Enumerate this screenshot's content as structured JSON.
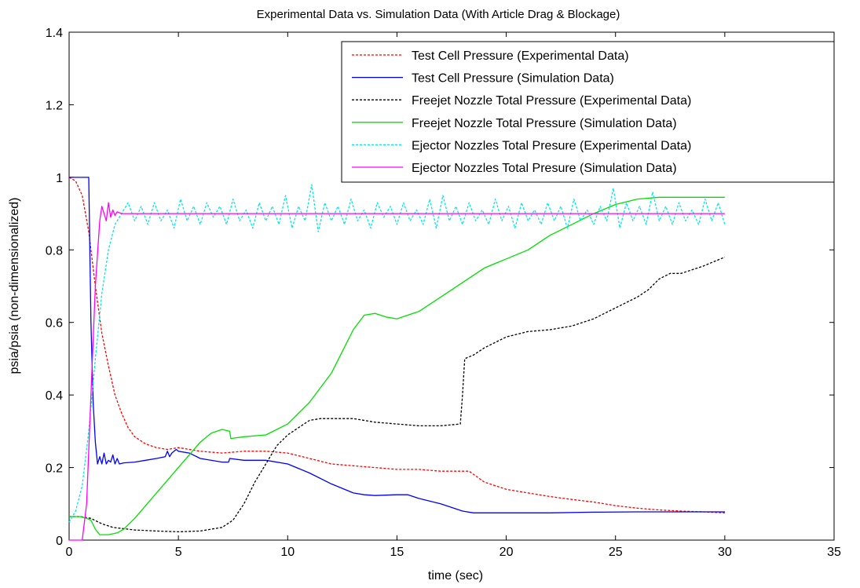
{
  "chart_data": {
    "type": "line",
    "title": "Experimental Data vs. Simulation Data (With Article Drag & Blockage)",
    "xlabel": "time (sec)",
    "ylabel": "psia/psia (non-dimensionalized)",
    "xlim": [
      0,
      35
    ],
    "ylim": [
      0,
      1.4
    ],
    "xticks": [
      0,
      5,
      10,
      15,
      20,
      25,
      30,
      35
    ],
    "xtick_labels": [
      "0",
      "5",
      "10",
      "15",
      "20",
      "25",
      "30",
      "35"
    ],
    "yticks": [
      0,
      0.2,
      0.4,
      0.6,
      0.8,
      1,
      1.2,
      1.4
    ],
    "ytick_labels": [
      "0",
      "0.2",
      "0.4",
      "0.6",
      "0.8",
      "1",
      "1.2",
      "1.4"
    ],
    "grid": false,
    "legend_position": "top-right",
    "series": [
      {
        "name": "Test Cell Pressure (Experimental Data)",
        "color": "#ff0000",
        "style": "dashed",
        "x": [
          0,
          0.3,
          0.6,
          0.9,
          1.2,
          1.5,
          1.8,
          2.1,
          2.4,
          2.7,
          3.0,
          3.5,
          4.0,
          4.5,
          5.0,
          6.0,
          7.0,
          8.0,
          9.0,
          10.0,
          11.0,
          12.0,
          13.0,
          14.0,
          15.0,
          16.0,
          17.0,
          18.0,
          18.3,
          19.0,
          20.0,
          21.0,
          22.0,
          23.0,
          24.0,
          25.0,
          26.0,
          27.0,
          28.0,
          29.0,
          30.0
        ],
        "y": [
          1.0,
          0.99,
          0.95,
          0.85,
          0.7,
          0.57,
          0.48,
          0.4,
          0.35,
          0.31,
          0.285,
          0.265,
          0.255,
          0.25,
          0.255,
          0.245,
          0.24,
          0.245,
          0.245,
          0.24,
          0.225,
          0.21,
          0.205,
          0.2,
          0.195,
          0.195,
          0.19,
          0.19,
          0.19,
          0.16,
          0.14,
          0.13,
          0.12,
          0.112,
          0.105,
          0.095,
          0.088,
          0.083,
          0.08,
          0.078,
          0.075
        ]
      },
      {
        "name": "Test Cell Pressure (Simulation Data)",
        "color": "#0000ff",
        "style": "solid",
        "x": [
          0,
          0.9,
          1.0,
          1.1,
          1.2,
          1.3,
          1.4,
          1.5,
          1.6,
          1.7,
          1.8,
          1.9,
          2.0,
          2.1,
          2.2,
          2.3,
          2.5,
          3.0,
          3.5,
          4.0,
          4.4,
          4.5,
          4.6,
          4.7,
          4.8,
          4.9,
          5.0,
          5.5,
          6.0,
          7.0,
          7.3,
          7.35,
          8.0,
          9.0,
          10.0,
          11.0,
          12.0,
          13.0,
          13.5,
          14.0,
          15.0,
          15.5,
          16.0,
          17.0,
          18.0,
          18.5,
          20.0,
          22.0,
          24.0,
          26.0,
          28.0,
          30.0
        ],
        "y": [
          1.0,
          1.0,
          0.6,
          0.38,
          0.27,
          0.21,
          0.23,
          0.21,
          0.24,
          0.21,
          0.22,
          0.215,
          0.235,
          0.21,
          0.225,
          0.21,
          0.213,
          0.215,
          0.22,
          0.225,
          0.23,
          0.245,
          0.23,
          0.24,
          0.245,
          0.25,
          0.245,
          0.24,
          0.225,
          0.215,
          0.215,
          0.225,
          0.22,
          0.22,
          0.21,
          0.185,
          0.155,
          0.13,
          0.125,
          0.123,
          0.125,
          0.125,
          0.115,
          0.1,
          0.08,
          0.075,
          0.075,
          0.075,
          0.077,
          0.078,
          0.078,
          0.078
        ]
      },
      {
        "name": "Freejet Nozzle Total Pressure (Experimental Data)",
        "color": "#000000",
        "style": "dashed",
        "x": [
          0,
          0.5,
          1.0,
          1.5,
          2.0,
          3.0,
          4.0,
          5.0,
          6.0,
          7.0,
          7.5,
          8.0,
          8.5,
          9.0,
          9.5,
          10.0,
          10.5,
          11.0,
          11.5,
          12.0,
          13.0,
          14.0,
          15.0,
          16.0,
          17.0,
          17.9,
          18.0,
          18.1,
          18.5,
          19.0,
          20.0,
          21.0,
          22.0,
          23.0,
          24.0,
          25.0,
          26.0,
          26.5,
          27.0,
          27.5,
          28.0,
          29.0,
          30.0
        ],
        "y": [
          0.065,
          0.065,
          0.06,
          0.045,
          0.035,
          0.028,
          0.025,
          0.023,
          0.025,
          0.035,
          0.055,
          0.1,
          0.16,
          0.21,
          0.26,
          0.29,
          0.31,
          0.33,
          0.335,
          0.335,
          0.335,
          0.325,
          0.32,
          0.315,
          0.315,
          0.32,
          0.4,
          0.5,
          0.51,
          0.53,
          0.56,
          0.575,
          0.58,
          0.59,
          0.61,
          0.64,
          0.67,
          0.69,
          0.72,
          0.735,
          0.735,
          0.755,
          0.78
        ]
      },
      {
        "name": "Freejet Nozzle Total Pressure (Simulation Data)",
        "color": "#00e000",
        "style": "solid",
        "x": [
          0,
          0.5,
          0.8,
          1.0,
          1.2,
          1.4,
          1.8,
          2.2,
          2.5,
          3.0,
          4.0,
          5.0,
          6.0,
          6.5,
          7.0,
          7.35,
          7.4,
          8.0,
          9.0,
          10.0,
          11.0,
          12.0,
          12.5,
          13.0,
          13.5,
          14.0,
          14.5,
          15.0,
          16.0,
          17.0,
          18.0,
          19.0,
          20.0,
          21.0,
          22.0,
          23.0,
          24.0,
          25.0,
          26.0,
          27.0,
          28.0,
          29.0,
          30.0
        ],
        "y": [
          0.065,
          0.065,
          0.06,
          0.055,
          0.03,
          0.015,
          0.015,
          0.02,
          0.03,
          0.06,
          0.13,
          0.2,
          0.27,
          0.295,
          0.305,
          0.3,
          0.28,
          0.285,
          0.29,
          0.32,
          0.38,
          0.46,
          0.52,
          0.58,
          0.62,
          0.625,
          0.615,
          0.61,
          0.63,
          0.67,
          0.71,
          0.75,
          0.775,
          0.8,
          0.84,
          0.87,
          0.9,
          0.925,
          0.94,
          0.945,
          0.945,
          0.945,
          0.945
        ]
      },
      {
        "name": "Ejector Nozzles Total Presure (Experimental Data)",
        "color": "#00e5ee",
        "style": "dashed",
        "x": [
          0,
          0.3,
          0.6,
          0.9,
          1.2,
          1.5,
          1.8,
          2.1,
          2.4,
          2.7,
          3.0,
          3.3,
          3.6,
          3.9,
          4.2,
          4.5,
          4.8,
          5.1,
          5.4,
          5.7,
          6.0,
          6.3,
          6.6,
          6.9,
          7.2,
          7.5,
          7.8,
          8.1,
          8.4,
          8.7,
          9.0,
          9.3,
          9.6,
          9.9,
          10.2,
          10.5,
          10.8,
          11.1,
          11.4,
          11.7,
          12.0,
          12.3,
          12.6,
          12.9,
          13.2,
          13.5,
          13.8,
          14.1,
          14.4,
          14.7,
          15.0,
          15.3,
          15.6,
          15.9,
          16.2,
          16.5,
          16.8,
          17.1,
          17.4,
          17.7,
          18.0,
          18.3,
          18.6,
          18.9,
          19.2,
          19.5,
          19.8,
          20.1,
          20.4,
          20.7,
          21.0,
          21.3,
          21.6,
          21.9,
          22.2,
          22.5,
          22.8,
          23.1,
          23.4,
          23.7,
          24.0,
          24.3,
          24.6,
          24.9,
          25.2,
          25.5,
          25.8,
          26.1,
          26.4,
          26.7,
          27.0,
          27.3,
          27.6,
          27.9,
          28.2,
          28.5,
          28.8,
          29.1,
          29.4,
          29.7,
          30.0
        ],
        "y": [
          0.05,
          0.08,
          0.15,
          0.3,
          0.5,
          0.68,
          0.8,
          0.87,
          0.9,
          0.93,
          0.88,
          0.92,
          0.87,
          0.93,
          0.88,
          0.91,
          0.86,
          0.94,
          0.88,
          0.92,
          0.87,
          0.93,
          0.89,
          0.92,
          0.87,
          0.94,
          0.88,
          0.91,
          0.86,
          0.93,
          0.88,
          0.92,
          0.87,
          0.95,
          0.86,
          0.92,
          0.88,
          0.98,
          0.85,
          0.93,
          0.88,
          0.92,
          0.87,
          0.94,
          0.88,
          0.91,
          0.86,
          0.93,
          0.89,
          0.92,
          0.87,
          0.93,
          0.88,
          0.91,
          0.87,
          0.94,
          0.86,
          0.95,
          0.88,
          0.92,
          0.87,
          0.93,
          0.88,
          0.91,
          0.87,
          0.94,
          0.88,
          0.92,
          0.86,
          0.93,
          0.88,
          0.91,
          0.87,
          0.93,
          0.88,
          0.92,
          0.86,
          0.94,
          0.88,
          0.91,
          0.87,
          0.92,
          0.88,
          0.97,
          0.86,
          0.93,
          0.88,
          0.92,
          0.87,
          0.96,
          0.88,
          0.92,
          0.87,
          0.93,
          0.88,
          0.91,
          0.87,
          0.94,
          0.88,
          0.93,
          0.87
        ]
      },
      {
        "name": "Ejector Nozzles Total Presure (Simulation Data)",
        "color": "#ff00ff",
        "style": "solid",
        "x": [
          0,
          0.6,
          0.8,
          1.0,
          1.2,
          1.4,
          1.5,
          1.6,
          1.7,
          1.8,
          1.9,
          2.0,
          2.1,
          2.2,
          2.4,
          2.6,
          3.0,
          5.0,
          10.0,
          15.0,
          20.0,
          25.0,
          30.0
        ],
        "y": [
          0,
          0,
          0.1,
          0.4,
          0.7,
          0.88,
          0.92,
          0.9,
          0.88,
          0.93,
          0.89,
          0.91,
          0.895,
          0.905,
          0.9,
          0.9,
          0.9,
          0.9,
          0.9,
          0.9,
          0.9,
          0.9,
          0.9
        ]
      }
    ]
  }
}
